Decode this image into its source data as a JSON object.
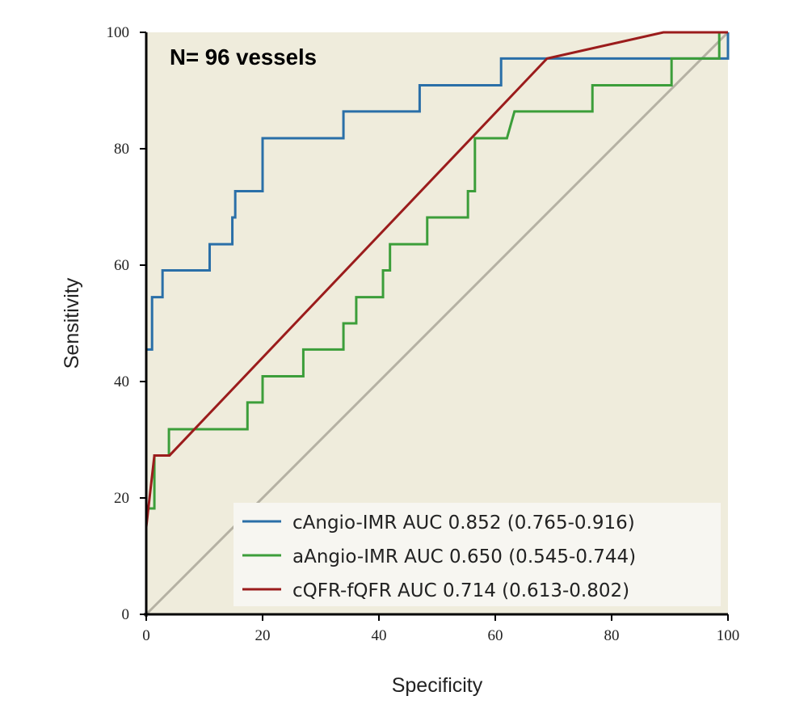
{
  "chart_data": {
    "type": "line",
    "title": "",
    "annotation": "N= 96 vessels",
    "xlabel": "Specificity",
    "ylabel": "Sensitivity",
    "xlim": [
      0,
      100
    ],
    "ylim": [
      0,
      100
    ],
    "xticks": [
      0,
      20,
      40,
      60,
      80,
      100
    ],
    "yticks": [
      0,
      20,
      40,
      60,
      80,
      100
    ],
    "legend_position": "bottom-right",
    "colors": {
      "background": "#efecdc",
      "reference": "#b5b1a3"
    },
    "series": [
      {
        "name": "cAngio-IMR AUC 0.852 (0.765-0.916)",
        "color": "#2a6fa8",
        "step": true,
        "points": [
          [
            0,
            0
          ],
          [
            0,
            45.5
          ],
          [
            1,
            45.5
          ],
          [
            1,
            54.5
          ],
          [
            2.8,
            54.5
          ],
          [
            2.8,
            59.1
          ],
          [
            10.9,
            59.1
          ],
          [
            10.9,
            63.6
          ],
          [
            14.8,
            63.6
          ],
          [
            14.8,
            68.2
          ],
          [
            15.3,
            68.2
          ],
          [
            15.3,
            72.7
          ],
          [
            20,
            72.7
          ],
          [
            20,
            81.8
          ],
          [
            33.9,
            81.8
          ],
          [
            33.9,
            86.4
          ],
          [
            47,
            86.4
          ],
          [
            47,
            90.9
          ],
          [
            61,
            90.9
          ],
          [
            61,
            95.5
          ],
          [
            100,
            95.5
          ],
          [
            100,
            100
          ]
        ]
      },
      {
        "name": "aAngio-IMR AUC 0.650 (0.545-0.744)",
        "color": "#3c9e3a",
        "step": true,
        "points": [
          [
            0,
            0
          ],
          [
            0,
            18.2
          ],
          [
            1.4,
            18.2
          ],
          [
            1.4,
            27.3
          ],
          [
            3.9,
            27.3
          ],
          [
            3.9,
            31.8
          ],
          [
            17.4,
            31.8
          ],
          [
            17.4,
            36.4
          ],
          [
            20,
            36.4
          ],
          [
            20,
            40.9
          ],
          [
            27,
            40.9
          ],
          [
            27,
            45.5
          ],
          [
            33.9,
            45.5
          ],
          [
            33.9,
            50
          ],
          [
            36.1,
            50
          ],
          [
            36.1,
            54.5
          ],
          [
            40.7,
            54.5
          ],
          [
            40.7,
            59.1
          ],
          [
            41.9,
            59.1
          ],
          [
            41.9,
            63.6
          ],
          [
            48.3,
            63.6
          ],
          [
            48.3,
            68.2
          ],
          [
            55.3,
            68.2
          ],
          [
            55.3,
            72.7
          ],
          [
            56.5,
            72.7
          ],
          [
            56.5,
            81.8
          ],
          [
            62,
            81.8
          ],
          [
            63.3,
            86.4
          ],
          [
            76.7,
            86.4
          ],
          [
            76.7,
            90.9
          ],
          [
            90.3,
            90.9
          ],
          [
            90.3,
            95.5
          ],
          [
            98.5,
            95.5
          ],
          [
            98.5,
            100
          ],
          [
            100,
            100
          ]
        ]
      },
      {
        "name": "cQFR-fQFR AUC 0.714 (0.613-0.802)",
        "color": "#9b1c1c",
        "step": false,
        "points": [
          [
            0,
            0
          ],
          [
            0,
            15
          ],
          [
            1.4,
            27.3
          ],
          [
            4,
            27.3
          ],
          [
            68.9,
            95.5
          ],
          [
            88.9,
            100
          ],
          [
            100,
            100
          ]
        ]
      }
    ]
  }
}
